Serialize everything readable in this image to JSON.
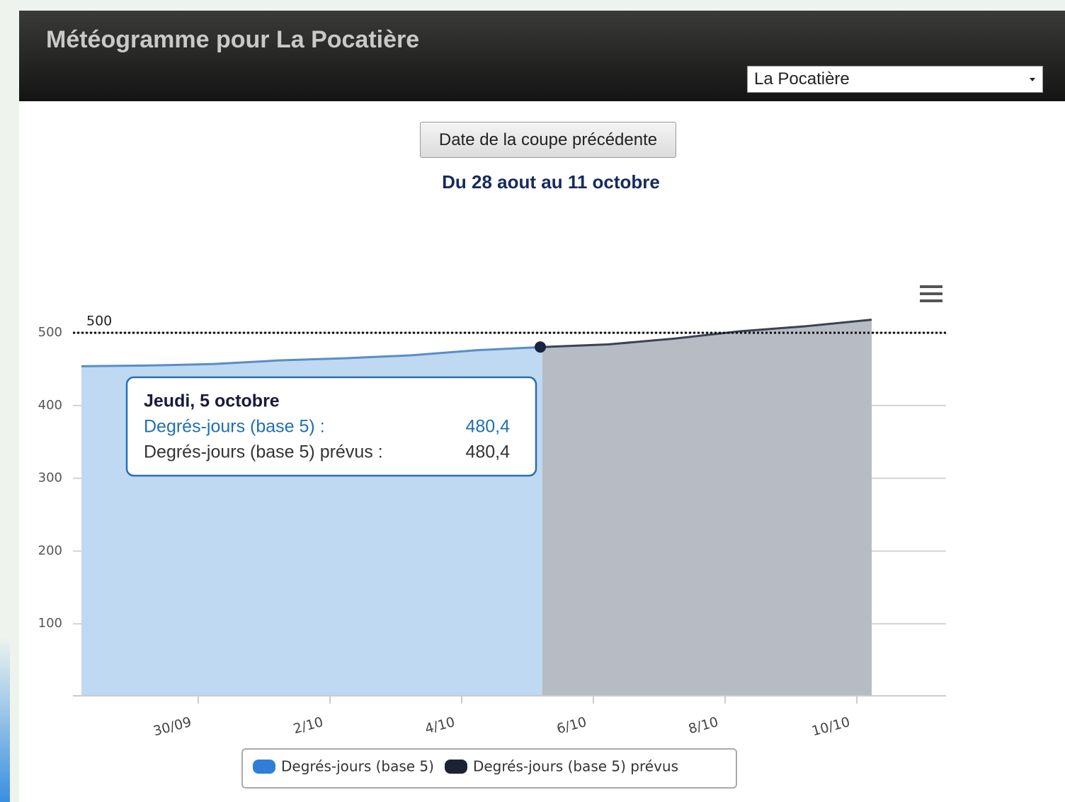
{
  "header": {
    "title": "Météogramme pour La Pocatière",
    "location": "La Pocatière"
  },
  "button": "Date de la coupe précédente",
  "subtitle": "Du 28 aout au 11 octobre",
  "chart_data": {
    "type": "area",
    "categories": [
      null,
      null,
      "30/09",
      null,
      "2/10",
      null,
      "4/10",
      null,
      "6/10",
      null,
      "8/10",
      null,
      "10/10"
    ],
    "series": [
      {
        "name": "Degrés-jours (base 5)",
        "color": "#2f7fd8",
        "line_color": "#5a8cc8",
        "fill": "#bfd9f2",
        "values": [
          454,
          455,
          457,
          462,
          465,
          469,
          476,
          480.4,
          null,
          null,
          null,
          null,
          null
        ],
        "value_labels": [
          null,
          null,
          null,
          null,
          null,
          null,
          null,
          "480,4",
          null,
          null,
          null,
          null,
          null
        ]
      },
      {
        "name": "Degrés-jours (base 5) prévus",
        "color": "#1b2333",
        "line_color": "#3b4252",
        "fill": "#b7bbc4",
        "values": [
          null,
          null,
          null,
          null,
          null,
          null,
          null,
          480.4,
          484,
          492,
          502,
          509,
          518
        ],
        "value_labels": [
          null,
          null,
          null,
          null,
          null,
          null,
          null,
          "480,4",
          null,
          null,
          null,
          null,
          null
        ]
      }
    ],
    "ylim": [
      0,
      540
    ],
    "yticks": [
      100,
      200,
      300,
      400,
      500
    ],
    "grid": true,
    "plot_lines": [
      {
        "value": 500,
        "label": "500"
      }
    ],
    "tooltip": {
      "title": "Jeudi, 5 octobre",
      "index": 7,
      "labels": [
        "Degrés-jours (base 5) :",
        "Degrés-jours (base 5) prévus :"
      ]
    }
  }
}
